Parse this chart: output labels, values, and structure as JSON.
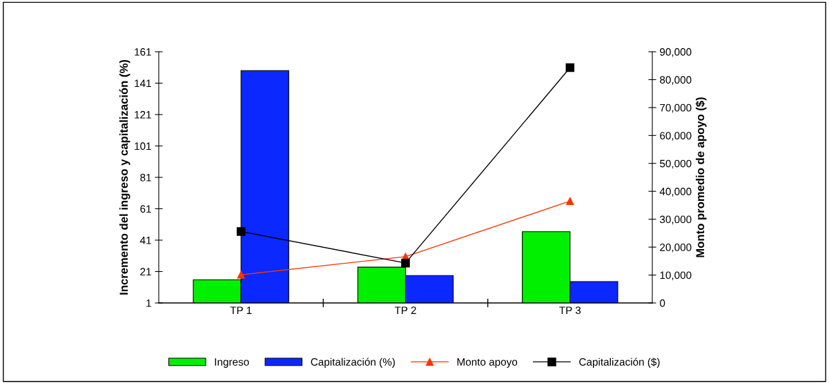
{
  "chart_data": {
    "type": "bar",
    "ylabel": "Incremento del ingreso y capitalización (%)",
    "y2label": "Monto promedio de apoyo ($)",
    "categories": [
      "TP 1",
      "TP 2",
      "TP 3"
    ],
    "series": [
      {
        "name": "Ingreso",
        "color": "#00f000",
        "values": [
          15.7,
          23.8,
          46.4
        ]
      },
      {
        "name": "Capitalización (%)",
        "color": "#0a28ff",
        "values": [
          149,
          18.5,
          14.6
        ]
      },
      {
        "name": "Monto apoyo",
        "type": "line",
        "axis": "y2",
        "color": "#ff3300",
        "marker": "triangle",
        "values": [
          10100,
          16600,
          36500
        ]
      },
      {
        "name": "Capitalización ($)",
        "type": "line",
        "axis": "y2",
        "color": "#000000",
        "marker": "square",
        "values": [
          25600,
          14300,
          84300
        ]
      }
    ],
    "ylim": [
      1,
      161
    ],
    "yticks": [
      1,
      21,
      41,
      61,
      81,
      101,
      121,
      141,
      161
    ],
    "y2lim": [
      0,
      90000
    ],
    "y2ticks": [
      {
        "value": 0,
        "label": "0"
      },
      {
        "value": 10000,
        "label": "10,000"
      },
      {
        "value": 20000,
        "label": "20,000"
      },
      {
        "value": 30000,
        "label": "30,000"
      },
      {
        "value": 40000,
        "label": "40,000"
      },
      {
        "value": 50000,
        "label": "50,000"
      },
      {
        "value": 60000,
        "label": "60,000"
      },
      {
        "value": 70000,
        "label": "70,000"
      },
      {
        "value": 80000,
        "label": "80,000"
      },
      {
        "value": 90000,
        "label": "90,000"
      }
    ],
    "grid": false,
    "legend": "bottom"
  }
}
